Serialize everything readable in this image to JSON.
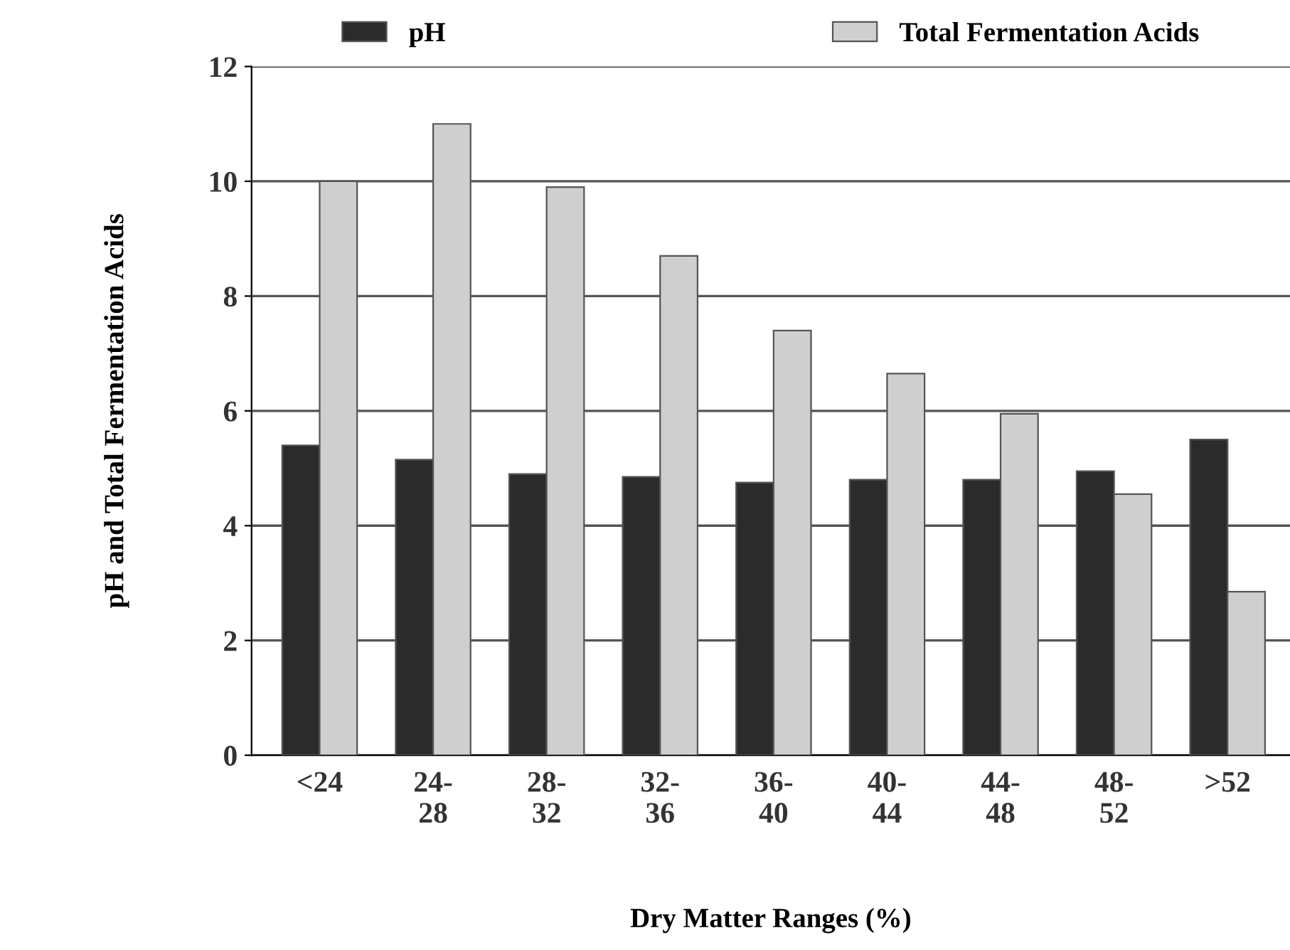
{
  "chart_data": {
    "type": "bar",
    "xlabel": "Dry Matter Ranges (%)",
    "ylabel": "pH and Total Fermentation Acids",
    "categories": [
      "<24",
      "24-\n28",
      "28-\n32",
      "32-\n36",
      "36-\n40",
      "40-\n44",
      "44-\n48",
      "48-\n52",
      ">52"
    ],
    "series": [
      {
        "name": "pH",
        "color": "#2b2b2b",
        "values": [
          5.4,
          5.15,
          4.9,
          4.85,
          4.75,
          4.8,
          4.8,
          4.95,
          5.5
        ]
      },
      {
        "name": "Total Fermentation Acids",
        "color": "#cfcfcf",
        "values": [
          10.0,
          11.0,
          9.9,
          8.7,
          7.4,
          6.65,
          5.95,
          4.55,
          2.85
        ]
      }
    ],
    "ylim": [
      0,
      12
    ],
    "yticks": [
      0,
      2,
      4,
      6,
      8,
      10,
      12
    ],
    "grid": "y",
    "legend": "top"
  }
}
